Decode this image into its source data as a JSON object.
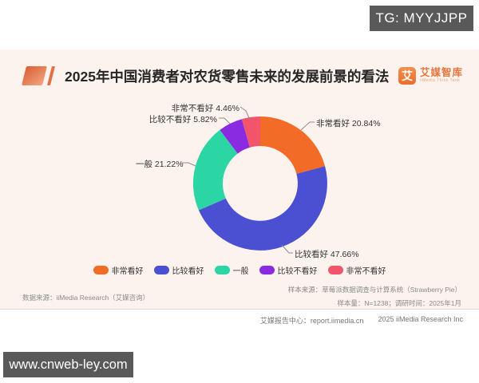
{
  "overlay": {
    "tg_badge": "TG: MYYJJPP",
    "watermark": "www.cnweb-ley.com"
  },
  "header": {
    "title": "2025年中国消费者对农货零售未来的发展前景的看法",
    "logo": {
      "icon_char": "艾",
      "name": "艾媒智库",
      "subtitle": "iiMedia Think Tank"
    }
  },
  "chart_data": {
    "type": "pie",
    "subtype": "donut",
    "title": "2025年中国消费者对农货零售未来的发展前景的看法",
    "start_angle_deg_from_top": 0,
    "direction": "clockwise",
    "donut_hole_ratio": 0.56,
    "legend_position": "bottom",
    "segments": [
      {
        "label": "非常看好",
        "value": 20.84,
        "color": "#F26C28"
      },
      {
        "label": "比较看好",
        "value": 47.66,
        "color": "#4B4FD2"
      },
      {
        "label": "一般",
        "value": 21.22,
        "color": "#2BD5A4"
      },
      {
        "label": "比较不看好",
        "value": 5.82,
        "color": "#8A2BE2"
      },
      {
        "label": "非常不看好",
        "value": 4.46,
        "color": "#F2546B"
      }
    ]
  },
  "footer": {
    "data_source": "数据来源：iiMedia Research（艾媒咨询）",
    "sample_source": "样本来源：草莓派数据调查与计算系统（Strawberry Pie）",
    "sample_info": "样本量：N=1238；调研时间：2025年1月",
    "report_center": "艾媒报告中心：report.iimedia.cn",
    "copyright": "2025 iiMedia Research Inc"
  },
  "colors": {
    "card_bg": "#FCF3EE",
    "badge_bg": "#595959",
    "accent_orange": "#EE7232",
    "leader_line": "#8C8C8C"
  }
}
